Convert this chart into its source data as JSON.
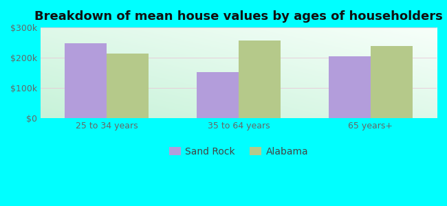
{
  "title": "Breakdown of mean house values by ages of householders",
  "categories": [
    "25 to 34 years",
    "35 to 64 years",
    "65 years+"
  ],
  "sand_rock_values": [
    248000,
    152000,
    205000
  ],
  "alabama_values": [
    215000,
    258000,
    238000
  ],
  "sand_rock_color": "#b39ddb",
  "alabama_color": "#b5c98a",
  "ylim": [
    0,
    300000
  ],
  "yticks": [
    0,
    100000,
    200000,
    300000
  ],
  "ytick_labels": [
    "$0",
    "$100k",
    "$200k",
    "$300k"
  ],
  "legend_labels": [
    "Sand Rock",
    "Alabama"
  ],
  "bg_outer": "#00ffff",
  "title_fontsize": 13,
  "tick_fontsize": 9,
  "legend_fontsize": 10,
  "bar_width": 0.32
}
